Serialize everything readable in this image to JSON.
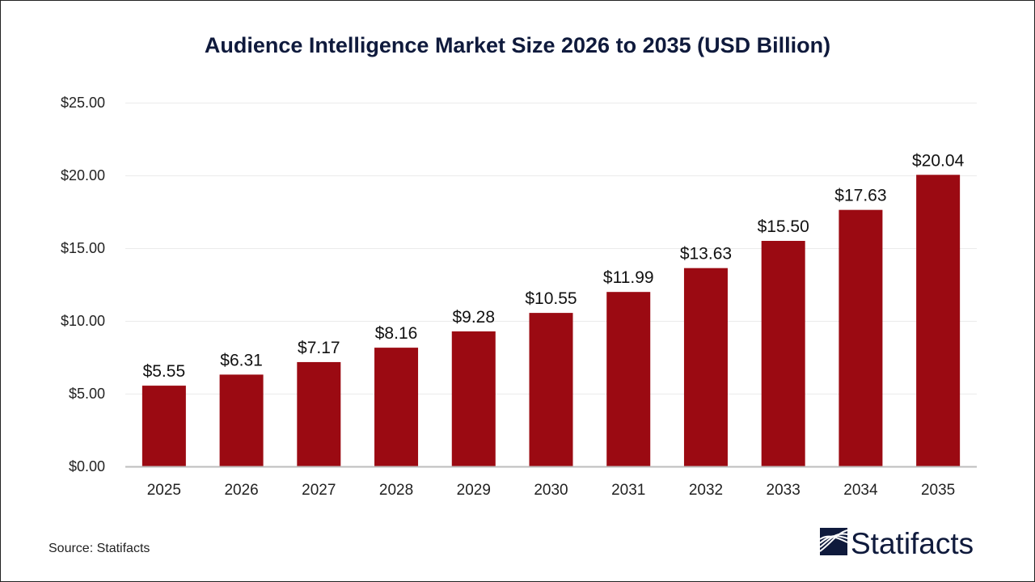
{
  "chart_data": {
    "type": "bar",
    "title": "Audience Intelligence Market Size 2026 to 2035 (USD Billion)",
    "xlabel": "",
    "ylabel": "",
    "categories": [
      "2025",
      "2026",
      "2027",
      "2028",
      "2029",
      "2030",
      "2031",
      "2032",
      "2033",
      "2034",
      "2035"
    ],
    "values": [
      5.55,
      6.31,
      7.17,
      8.16,
      9.28,
      10.55,
      11.99,
      13.63,
      15.5,
      17.63,
      20.04
    ],
    "data_labels": [
      "$5.55",
      "$6.31",
      "$7.17",
      "$8.16",
      "$9.28",
      "$10.55",
      "$11.99",
      "$13.63",
      "$15.50",
      "$17.63",
      "$20.04"
    ],
    "ylim": [
      0,
      25
    ],
    "yticks": [
      0,
      5,
      10,
      15,
      20,
      25
    ],
    "ytick_labels": [
      "$0.00",
      "$5.00",
      "$10.00",
      "$15.00",
      "$20.00",
      "$25.00"
    ],
    "grid": true,
    "legend": "none",
    "bar_color": "#9B0A12"
  },
  "footer": {
    "source": "Source: Statifacts",
    "logo_text": "Statifacts",
    "logo_color": "#0F1A3C"
  }
}
